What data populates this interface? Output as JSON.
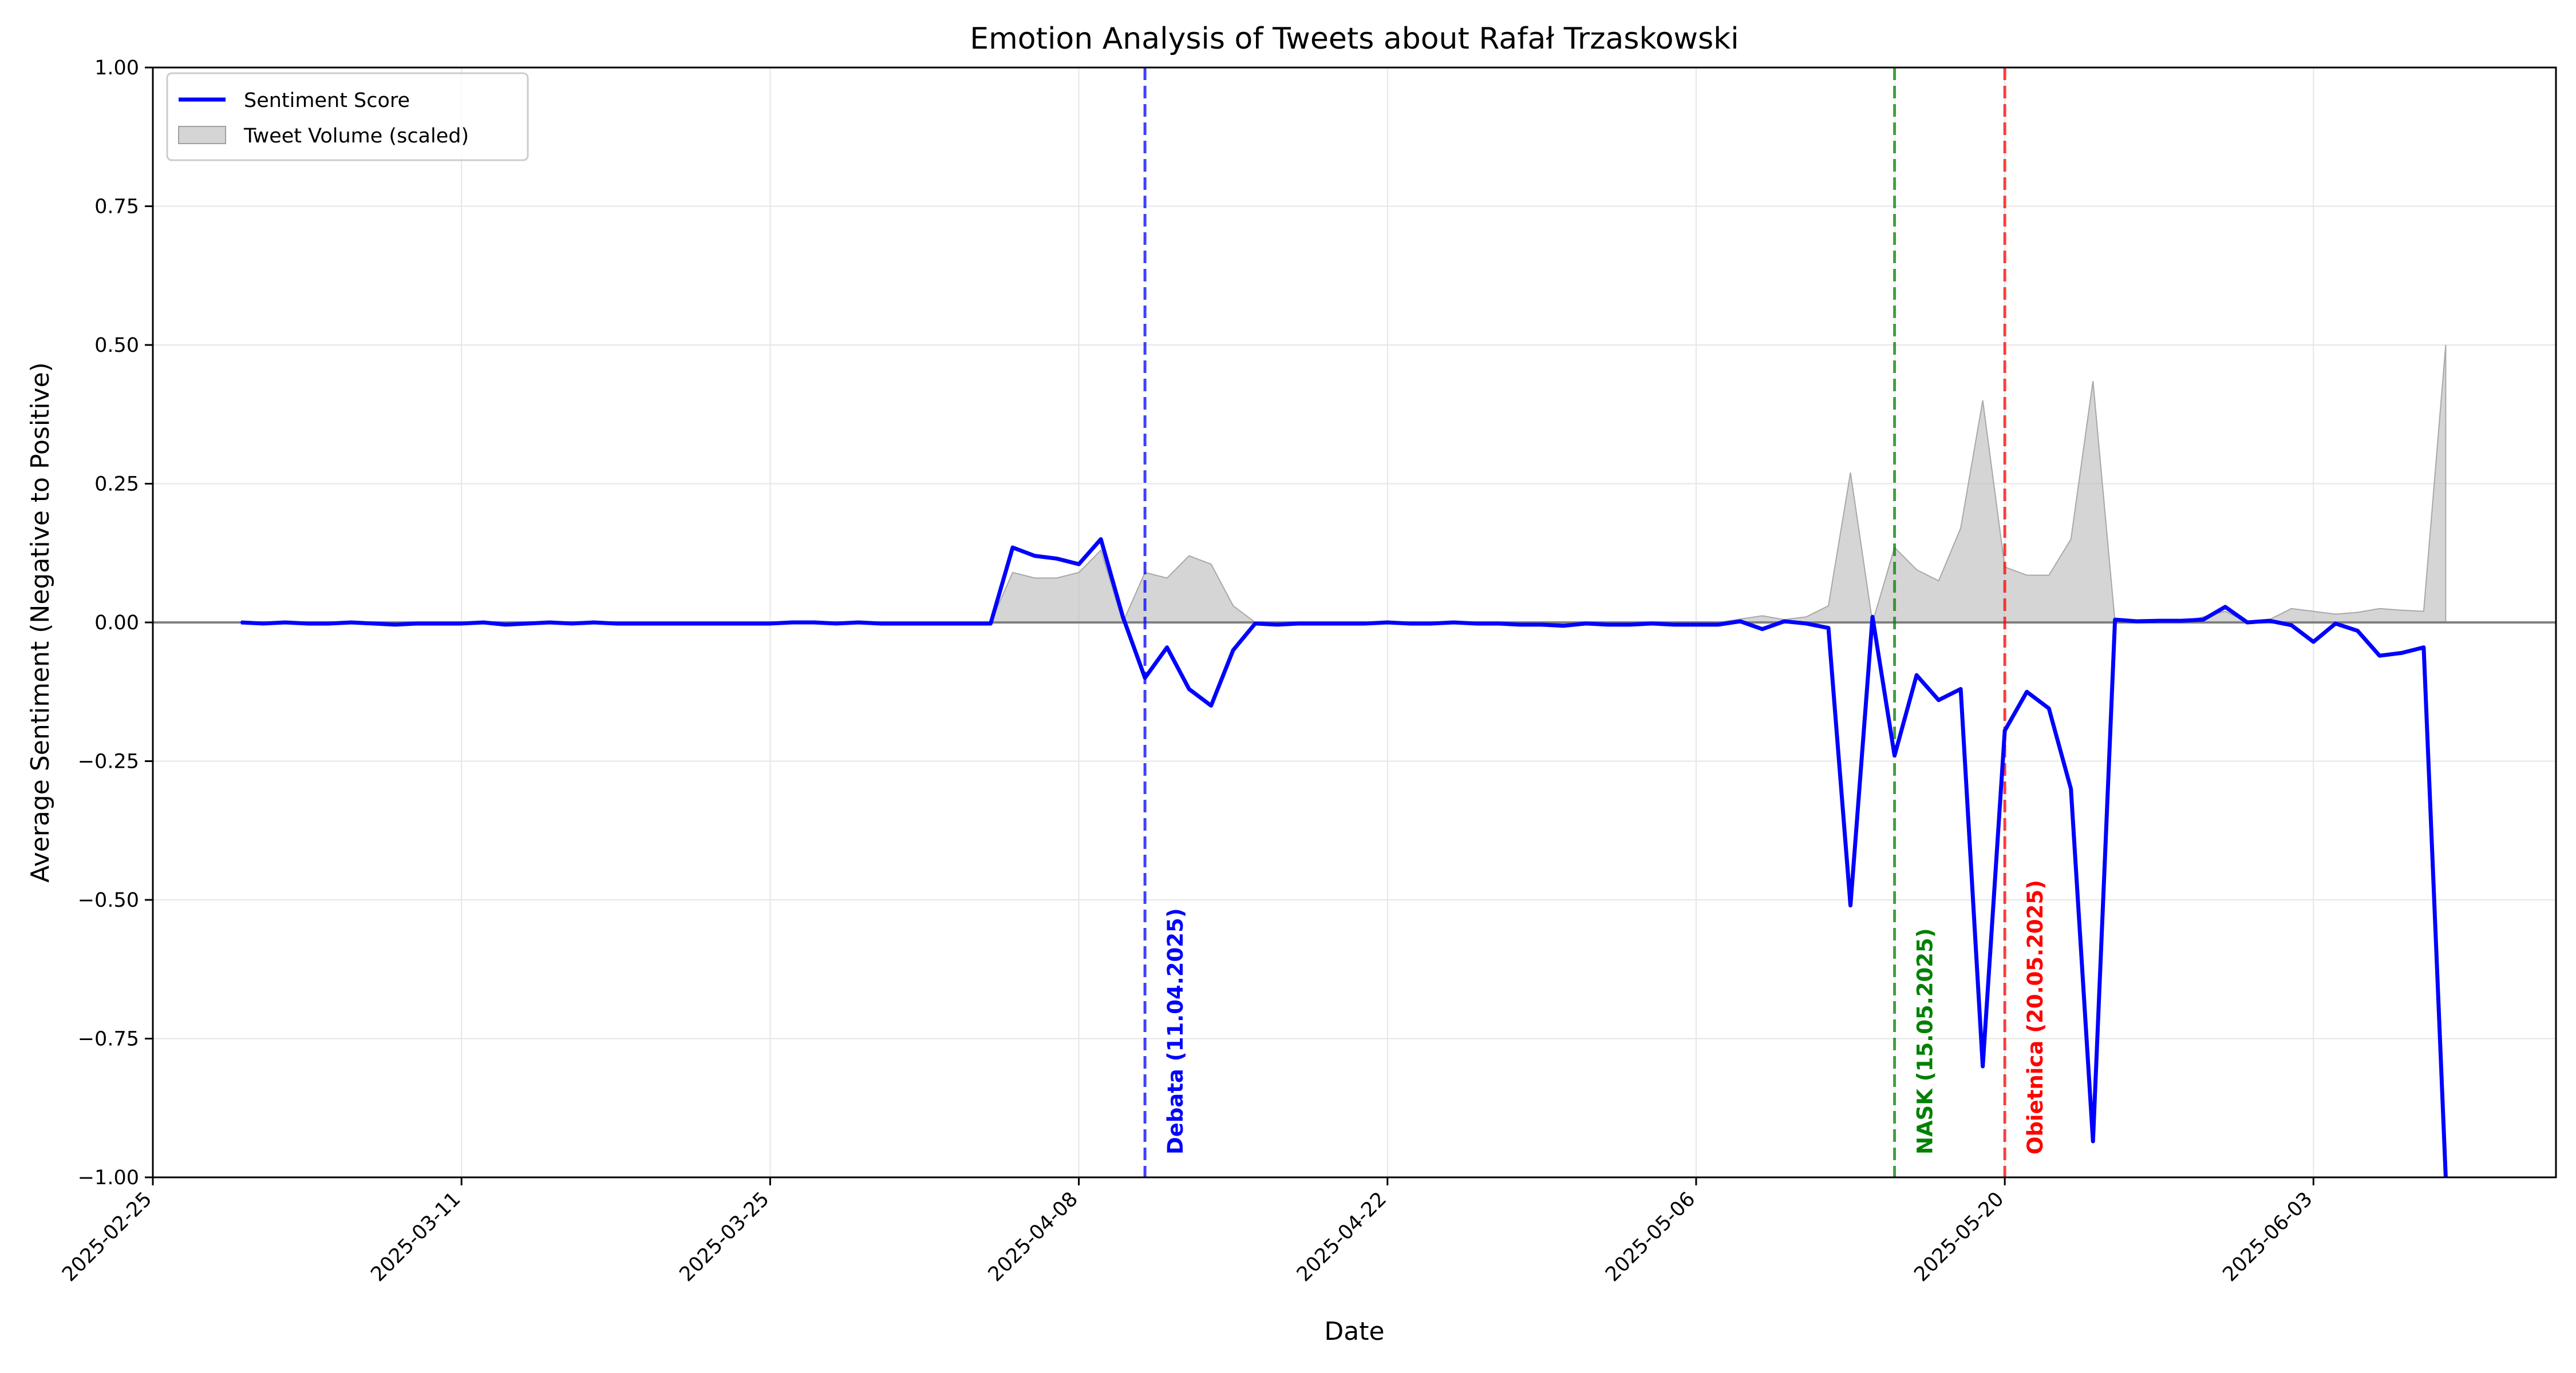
{
  "chart_data": {
    "type": "line",
    "title": "Emotion Analysis of Tweets about Rafał Trzaskowski",
    "xlabel": "Date",
    "ylabel": "Average Sentiment (Negative to Positive)",
    "x_range": [
      "2025-02-25",
      "2025-06-14"
    ],
    "ylim": [
      -1.0,
      1.0
    ],
    "grid": true,
    "legend_placement": "top-left",
    "x_ticks": [
      "2025-02-25",
      "2025-03-11",
      "2025-03-25",
      "2025-04-08",
      "2025-04-22",
      "2025-05-06",
      "2025-05-20",
      "2025-06-03"
    ],
    "y_ticks": [
      -1.0,
      -0.75,
      -0.5,
      -0.25,
      0.0,
      0.25,
      0.5,
      0.75,
      1.0
    ],
    "y_tick_labels": [
      "−1.00",
      "−0.75",
      "−0.50",
      "−0.25",
      "0.00",
      "0.25",
      "0.50",
      "0.75",
      "1.00"
    ],
    "series": [
      {
        "name": "Sentiment Score",
        "color": "#0000ff",
        "kind": "line",
        "points": [
          [
            "2025-03-01",
            0.0
          ],
          [
            "2025-03-02",
            -0.002
          ],
          [
            "2025-03-03",
            0.0
          ],
          [
            "2025-03-04",
            -0.002
          ],
          [
            "2025-03-05",
            -0.002
          ],
          [
            "2025-03-06",
            0.0
          ],
          [
            "2025-03-07",
            -0.002
          ],
          [
            "2025-03-08",
            -0.004
          ],
          [
            "2025-03-09",
            -0.002
          ],
          [
            "2025-03-10",
            -0.002
          ],
          [
            "2025-03-11",
            -0.002
          ],
          [
            "2025-03-12",
            0.0
          ],
          [
            "2025-03-13",
            -0.004
          ],
          [
            "2025-03-14",
            -0.002
          ],
          [
            "2025-03-15",
            0.0
          ],
          [
            "2025-03-16",
            -0.002
          ],
          [
            "2025-03-17",
            0.0
          ],
          [
            "2025-03-18",
            -0.002
          ],
          [
            "2025-03-19",
            -0.002
          ],
          [
            "2025-03-20",
            -0.002
          ],
          [
            "2025-03-21",
            -0.002
          ],
          [
            "2025-03-22",
            -0.002
          ],
          [
            "2025-03-23",
            -0.002
          ],
          [
            "2025-03-24",
            -0.002
          ],
          [
            "2025-03-25",
            -0.002
          ],
          [
            "2025-03-26",
            0.0
          ],
          [
            "2025-03-27",
            0.0
          ],
          [
            "2025-03-28",
            -0.002
          ],
          [
            "2025-03-29",
            0.0
          ],
          [
            "2025-03-30",
            -0.002
          ],
          [
            "2025-03-31",
            -0.002
          ],
          [
            "2025-04-01",
            -0.002
          ],
          [
            "2025-04-02",
            -0.002
          ],
          [
            "2025-04-03",
            -0.002
          ],
          [
            "2025-04-04",
            -0.002
          ],
          [
            "2025-04-05",
            0.135
          ],
          [
            "2025-04-06",
            0.12
          ],
          [
            "2025-04-07",
            0.115
          ],
          [
            "2025-04-08",
            0.105
          ],
          [
            "2025-04-09",
            0.15
          ],
          [
            "2025-04-10",
            0.01
          ],
          [
            "2025-04-11",
            -0.1
          ],
          [
            "2025-04-12",
            -0.045
          ],
          [
            "2025-04-13",
            -0.12
          ],
          [
            "2025-04-14",
            -0.15
          ],
          [
            "2025-04-15",
            -0.05
          ],
          [
            "2025-04-16",
            -0.002
          ],
          [
            "2025-04-17",
            -0.004
          ],
          [
            "2025-04-18",
            -0.002
          ],
          [
            "2025-04-19",
            -0.002
          ],
          [
            "2025-04-20",
            -0.002
          ],
          [
            "2025-04-21",
            -0.002
          ],
          [
            "2025-04-22",
            0.0
          ],
          [
            "2025-04-23",
            -0.002
          ],
          [
            "2025-04-24",
            -0.002
          ],
          [
            "2025-04-25",
            0.0
          ],
          [
            "2025-04-26",
            -0.002
          ],
          [
            "2025-04-27",
            -0.002
          ],
          [
            "2025-04-28",
            -0.004
          ],
          [
            "2025-04-29",
            -0.004
          ],
          [
            "2025-04-30",
            -0.006
          ],
          [
            "2025-05-01",
            -0.002
          ],
          [
            "2025-05-02",
            -0.004
          ],
          [
            "2025-05-03",
            -0.004
          ],
          [
            "2025-05-04",
            -0.002
          ],
          [
            "2025-05-05",
            -0.004
          ],
          [
            "2025-05-06",
            -0.004
          ],
          [
            "2025-05-07",
            -0.004
          ],
          [
            "2025-05-08",
            0.002
          ],
          [
            "2025-05-09",
            -0.012
          ],
          [
            "2025-05-10",
            0.002
          ],
          [
            "2025-05-11",
            -0.002
          ],
          [
            "2025-05-12",
            -0.01
          ],
          [
            "2025-05-13",
            -0.51
          ],
          [
            "2025-05-14",
            0.01
          ],
          [
            "2025-05-15",
            -0.24
          ],
          [
            "2025-05-16",
            -0.095
          ],
          [
            "2025-05-17",
            -0.14
          ],
          [
            "2025-05-18",
            -0.12
          ],
          [
            "2025-05-19",
            -0.8
          ],
          [
            "2025-05-20",
            -0.195
          ],
          [
            "2025-05-21",
            -0.125
          ],
          [
            "2025-05-22",
            -0.155
          ],
          [
            "2025-05-23",
            -0.3
          ],
          [
            "2025-05-24",
            -0.935
          ],
          [
            "2025-05-25",
            0.005
          ],
          [
            "2025-05-26",
            0.002
          ],
          [
            "2025-05-27",
            0.003
          ],
          [
            "2025-05-28",
            0.003
          ],
          [
            "2025-05-29",
            0.005
          ],
          [
            "2025-05-30",
            0.028
          ],
          [
            "2025-05-31",
            0.0
          ],
          [
            "2025-06-01",
            0.003
          ],
          [
            "2025-06-02",
            -0.005
          ],
          [
            "2025-06-03",
            -0.035
          ],
          [
            "2025-06-04",
            -0.002
          ],
          [
            "2025-06-05",
            -0.015
          ],
          [
            "2025-06-06",
            -0.06
          ],
          [
            "2025-06-07",
            -0.055
          ],
          [
            "2025-06-08",
            -0.045
          ],
          [
            "2025-06-09",
            -1.0
          ]
        ]
      },
      {
        "name": "Tweet Volume (scaled)",
        "color": "#bfbfbf",
        "kind": "area",
        "points": [
          [
            "2025-04-04",
            0.0
          ],
          [
            "2025-04-05",
            0.09
          ],
          [
            "2025-04-06",
            0.08
          ],
          [
            "2025-04-07",
            0.08
          ],
          [
            "2025-04-08",
            0.09
          ],
          [
            "2025-04-09",
            0.13
          ],
          [
            "2025-04-10",
            0.0
          ],
          [
            "2025-04-11",
            0.09
          ],
          [
            "2025-04-12",
            0.08
          ],
          [
            "2025-04-13",
            0.12
          ],
          [
            "2025-04-14",
            0.105
          ],
          [
            "2025-04-15",
            0.03
          ],
          [
            "2025-04-16",
            0.0
          ],
          [
            "2025-05-07",
            0.0
          ],
          [
            "2025-05-09",
            0.012
          ],
          [
            "2025-05-10",
            0.005
          ],
          [
            "2025-05-11",
            0.01
          ],
          [
            "2025-05-12",
            0.03
          ],
          [
            "2025-05-13",
            0.27
          ],
          [
            "2025-05-14",
            0.0
          ],
          [
            "2025-05-15",
            0.135
          ],
          [
            "2025-05-16",
            0.095
          ],
          [
            "2025-05-17",
            0.075
          ],
          [
            "2025-05-18",
            0.17
          ],
          [
            "2025-05-19",
            0.4
          ],
          [
            "2025-05-20",
            0.1
          ],
          [
            "2025-05-21",
            0.085
          ],
          [
            "2025-05-22",
            0.085
          ],
          [
            "2025-05-23",
            0.15
          ],
          [
            "2025-05-24",
            0.435
          ],
          [
            "2025-05-25",
            0.0
          ],
          [
            "2025-05-28",
            0.0
          ],
          [
            "2025-05-29",
            0.01
          ],
          [
            "2025-05-30",
            0.02
          ],
          [
            "2025-05-31",
            0.0
          ],
          [
            "2025-06-01",
            0.005
          ],
          [
            "2025-06-02",
            0.025
          ],
          [
            "2025-06-03",
            0.02
          ],
          [
            "2025-06-04",
            0.015
          ],
          [
            "2025-06-05",
            0.018
          ],
          [
            "2025-06-06",
            0.025
          ],
          [
            "2025-06-07",
            0.022
          ],
          [
            "2025-06-08",
            0.02
          ],
          [
            "2025-06-09",
            0.5
          ],
          [
            "2025-06-09",
            0.0
          ]
        ]
      }
    ],
    "reference_lines": [
      {
        "type": "horizontal",
        "y": 0.0,
        "color": "#808080"
      }
    ],
    "annotations": [
      {
        "date": "2025-04-11",
        "label": "Debata (11.04.2025)",
        "color": "#0000ff"
      },
      {
        "date": "2025-05-15",
        "label": "NASK (15.05.2025)",
        "color": "#008000"
      },
      {
        "date": "2025-05-20",
        "label": "Obietnica (20.05.2025)",
        "color": "#ff0000"
      }
    ]
  }
}
